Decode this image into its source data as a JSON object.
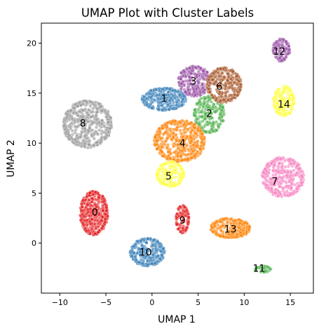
{
  "chart_data": {
    "type": "scatter",
    "title": "UMAP Plot with Cluster Labels",
    "xlabel": "UMAP 1",
    "ylabel": "UMAP 2",
    "xlim": [
      -12,
      17.5
    ],
    "ylim": [
      -5,
      22
    ],
    "xticks": [
      -10,
      -5,
      0,
      5,
      10,
      15
    ],
    "yticks": [
      0,
      5,
      10,
      15,
      20
    ],
    "grid": false,
    "legend": "none",
    "point_opacity": 0.6,
    "clusters": [
      {
        "label": "0",
        "center": [
          -6.3,
          3.0
        ],
        "spread": [
          1.2,
          1.75
        ],
        "color": "#e41a1c",
        "count": 420
      },
      {
        "label": "1",
        "center": [
          1.3,
          14.4
        ],
        "spread": [
          1.9,
          0.9
        ],
        "color": "#377eb8",
        "count": 320
      },
      {
        "label": "2",
        "center": [
          6.2,
          12.9
        ],
        "spread": [
          1.3,
          1.5
        ],
        "color": "#4daf4a",
        "count": 260
      },
      {
        "label": "3",
        "center": [
          4.6,
          16.2
        ],
        "spread": [
          1.4,
          1.2
        ],
        "color": "#984ea3",
        "count": 260
      },
      {
        "label": "4",
        "center": [
          3.0,
          10.2
        ],
        "spread": [
          2.2,
          1.7
        ],
        "color": "#ff7f00",
        "count": 480
      },
      {
        "label": "5",
        "center": [
          2.0,
          6.9
        ],
        "spread": [
          1.2,
          1.0
        ],
        "color": "#ffff33",
        "count": 170
      },
      {
        "label": "6",
        "center": [
          7.8,
          15.8
        ],
        "spread": [
          1.5,
          1.4
        ],
        "color": "#a65628",
        "count": 320
      },
      {
        "label": "7",
        "center": [
          14.2,
          6.6
        ],
        "spread": [
          1.8,
          1.6
        ],
        "color": "#f781bf",
        "count": 380
      },
      {
        "label": "8",
        "center": [
          -7.0,
          11.9
        ],
        "spread": [
          2.1,
          1.9
        ],
        "color": "#999999",
        "count": 520
      },
      {
        "label": "9",
        "center": [
          3.3,
          2.4
        ],
        "spread": [
          0.55,
          1.1
        ],
        "color": "#e41a1c",
        "count": 110
      },
      {
        "label": "10",
        "center": [
          -0.5,
          -0.9
        ],
        "spread": [
          1.5,
          1.1
        ],
        "color": "#377eb8",
        "count": 330
      },
      {
        "label": "11",
        "center": [
          12.0,
          -2.6
        ],
        "spread": [
          0.7,
          0.25
        ],
        "color": "#4daf4a",
        "count": 40
      },
      {
        "label": "12",
        "center": [
          14.0,
          19.3
        ],
        "spread": [
          0.75,
          0.9
        ],
        "color": "#984ea3",
        "count": 120
      },
      {
        "label": "13",
        "center": [
          8.5,
          1.5
        ],
        "spread": [
          1.7,
          0.8
        ],
        "color": "#ff7f00",
        "count": 260
      },
      {
        "label": "14",
        "center": [
          14.3,
          14.2
        ],
        "spread": [
          0.9,
          1.2
        ],
        "color": "#ffff33",
        "count": 170
      }
    ],
    "label_positions": [
      {
        "label": "0",
        "x": -6.2,
        "y": 3.1
      },
      {
        "label": "1",
        "x": 1.3,
        "y": 14.5
      },
      {
        "label": "2",
        "x": 6.2,
        "y": 13.0
      },
      {
        "label": "3",
        "x": 4.5,
        "y": 16.2
      },
      {
        "label": "4",
        "x": 3.3,
        "y": 10.0
      },
      {
        "label": "5",
        "x": 1.8,
        "y": 6.7
      },
      {
        "label": "6",
        "x": 7.3,
        "y": 15.7
      },
      {
        "label": "7",
        "x": 13.3,
        "y": 6.2
      },
      {
        "label": "8",
        "x": -7.5,
        "y": 12.0
      },
      {
        "label": "9",
        "x": 3.3,
        "y": 2.3
      },
      {
        "label": "10",
        "x": -0.7,
        "y": -0.9
      },
      {
        "label": "11",
        "x": 11.6,
        "y": -2.5
      },
      {
        "label": "12",
        "x": 13.8,
        "y": 19.2
      },
      {
        "label": "13",
        "x": 8.5,
        "y": 1.4
      },
      {
        "label": "14",
        "x": 14.3,
        "y": 13.9
      }
    ]
  }
}
